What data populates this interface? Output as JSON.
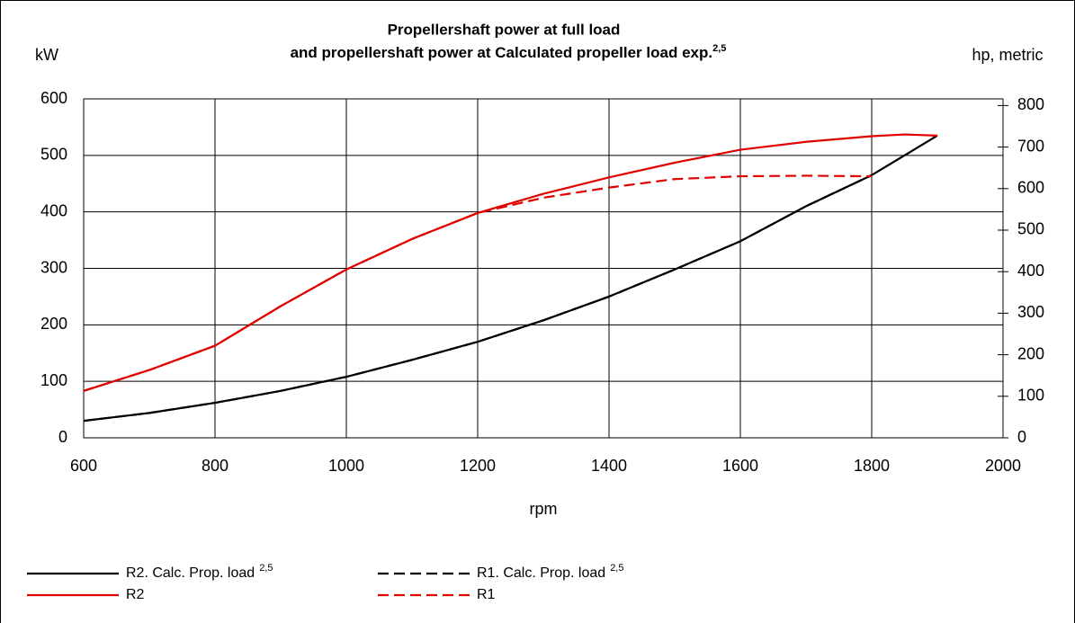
{
  "chart_data": {
    "type": "line",
    "title": [
      "Propellershaft power at full load",
      "and propellershaft power at Calculated propeller load exp."
    ],
    "title_sup": "2,5",
    "ylabel": "kW",
    "y2label": "hp, metric",
    "xlabel": "rpm",
    "xlim": [
      600,
      2000
    ],
    "xticks": [
      600,
      800,
      1000,
      1200,
      1400,
      1600,
      1800,
      2000
    ],
    "ylim": [
      0,
      600
    ],
    "yticks": [
      0,
      100,
      200,
      300,
      400,
      500,
      600
    ],
    "y2lim": [
      0,
      816
    ],
    "y2ticks": [
      0,
      100,
      200,
      300,
      400,
      500,
      600,
      700,
      800
    ],
    "grid": true,
    "series": [
      {
        "name": "R2. Calc. Prop. load",
        "name_sup": "2,5",
        "color": "#000000",
        "dash": false,
        "x": [
          600,
          700,
          800,
          900,
          1000,
          1100,
          1200,
          1300,
          1400,
          1500,
          1600,
          1700,
          1800,
          1900
        ],
        "values": [
          30,
          44,
          62,
          83,
          108,
          138,
          170,
          208,
          250,
          298,
          348,
          410,
          465,
          535
        ]
      },
      {
        "name": "R1. Calc. Prop. load",
        "name_sup": "2,5",
        "color": "#000000",
        "dash": true,
        "x": [
          600,
          700,
          800,
          900,
          1000,
          1100,
          1200,
          1300,
          1400,
          1500,
          1600,
          1700,
          1800
        ],
        "values": [
          30,
          44,
          62,
          83,
          108,
          138,
          170,
          208,
          250,
          298,
          348,
          410,
          465
        ]
      },
      {
        "name": "R2",
        "color": "#e00000",
        "dash": false,
        "x": [
          600,
          700,
          800,
          900,
          1000,
          1100,
          1200,
          1300,
          1400,
          1500,
          1600,
          1700,
          1800,
          1850,
          1900
        ],
        "values": [
          83,
          120,
          163,
          233,
          298,
          352,
          398,
          432,
          461,
          487,
          510,
          524,
          534,
          537,
          535
        ]
      },
      {
        "name": "R1",
        "color": "#e00000",
        "dash": true,
        "x": [
          600,
          700,
          800,
          900,
          1000,
          1100,
          1200,
          1300,
          1400,
          1500,
          1600,
          1700,
          1800
        ],
        "values": [
          83,
          120,
          163,
          233,
          298,
          352,
          398,
          425,
          443,
          458,
          463,
          464,
          463
        ]
      }
    ]
  }
}
